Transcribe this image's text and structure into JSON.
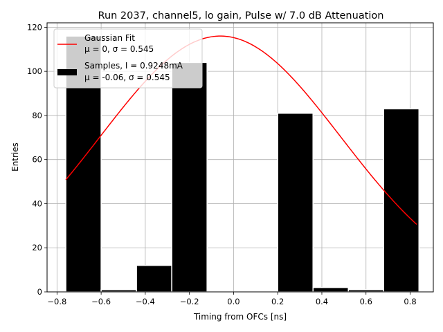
{
  "chart_data": {
    "type": "bar",
    "title": "Run 2037, channel5, lo gain, Pulse w/ 7.0 dB Attenuation",
    "xlabel": "Timing from OFCs [ns]",
    "ylabel": "Entries",
    "xlim": [
      -0.845,
      0.905
    ],
    "ylim": [
      0,
      122
    ],
    "xticks": [
      -0.8,
      -0.6,
      -0.4,
      -0.2,
      0.0,
      0.2,
      0.4,
      0.6,
      0.8
    ],
    "yticks": [
      0,
      20,
      40,
      60,
      80,
      100,
      120
    ],
    "grid": true,
    "legend_position": "upper-left",
    "bins": [
      {
        "x0": -0.76,
        "x1": -0.6,
        "count": 116
      },
      {
        "x0": -0.6,
        "x1": -0.44,
        "count": 1
      },
      {
        "x0": -0.44,
        "x1": -0.28,
        "count": 12
      },
      {
        "x0": -0.28,
        "x1": -0.12,
        "count": 104
      },
      {
        "x0": -0.12,
        "x1": 0.04,
        "count": 0
      },
      {
        "x0": 0.04,
        "x1": 0.2,
        "count": 0
      },
      {
        "x0": 0.2,
        "x1": 0.36,
        "count": 81
      },
      {
        "x0": 0.36,
        "x1": 0.52,
        "count": 2
      },
      {
        "x0": 0.52,
        "x1": 0.68,
        "count": 1
      },
      {
        "x0": 0.68,
        "x1": 0.84,
        "count": 83
      }
    ],
    "fit": {
      "mu": -0.06,
      "sigma": 0.545,
      "amplitude": 116,
      "x_start": -0.76,
      "x_end": 0.83,
      "color": "#ff0000"
    },
    "bar_color": "#000000",
    "legend": [
      {
        "label": "Gaussian Fit",
        "sublabel": "μ = 0, σ = 0.545",
        "kind": "line"
      },
      {
        "label": "Samples, I = 0.9248mA",
        "sublabel": "μ = -0.06, σ = 0.545",
        "kind": "patch"
      }
    ]
  }
}
